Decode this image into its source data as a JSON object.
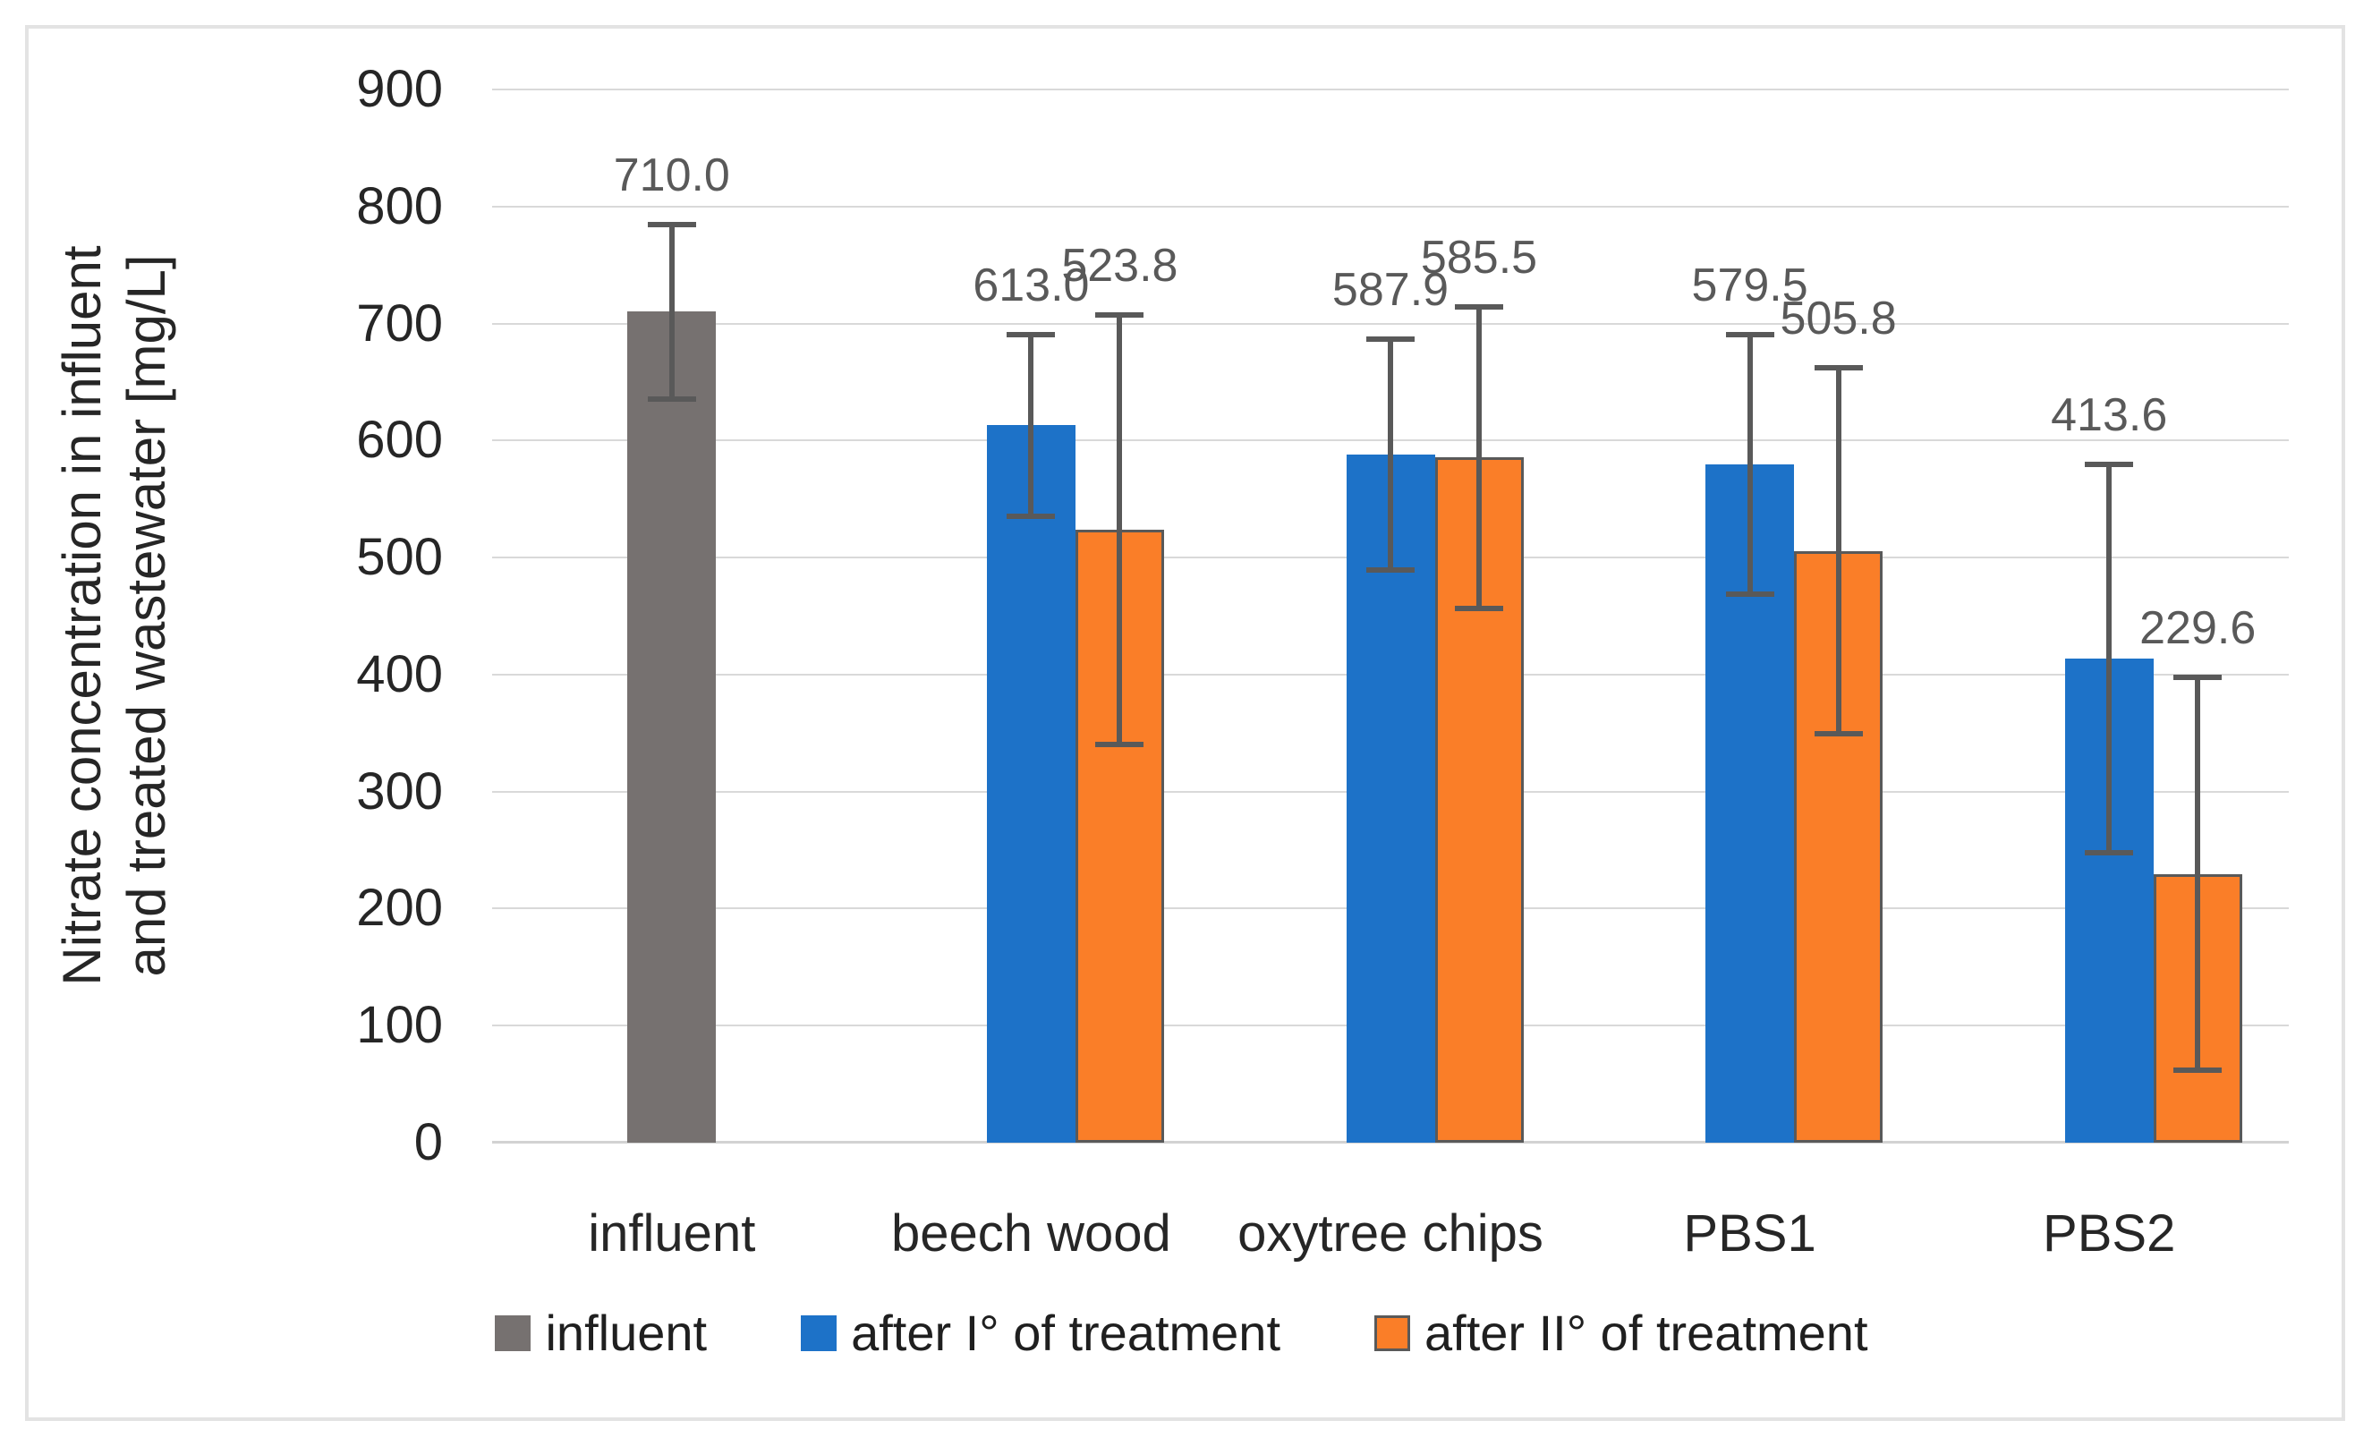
{
  "figure": {
    "border_color": "#e3e3e3",
    "background_color": "#ffffff"
  },
  "chart_data": {
    "type": "bar",
    "title": "",
    "ylabel_line1": "Nitrate concentration in influent",
    "ylabel_line2": "and treated wastewater [mg/L]",
    "ylabel": "Nitrate concentration in influent and treated wastewater [mg/L]",
    "xlabel": "",
    "ylim": [
      0,
      900
    ],
    "yticks": [
      0,
      100,
      200,
      300,
      400,
      500,
      600,
      700,
      800,
      900
    ],
    "grid": true,
    "legend_position": "bottom",
    "gridline_color": "#d9d9d9",
    "error_bar_color": "#595959",
    "data_label_color": "#595959",
    "axis_text_color": "#262626",
    "categories": [
      "influent",
      "beech wood",
      "oxytree chips",
      "PBS1",
      "PBS2"
    ],
    "series": [
      {
        "name": "influent",
        "color": "#767170",
        "border_color": null,
        "points": [
          {
            "category": "influent",
            "value": 710.0,
            "label": "710.0",
            "error": 77
          }
        ]
      },
      {
        "name": "after I° of treatment",
        "color": "#1d72c8",
        "border_color": null,
        "points": [
          {
            "category": "beech wood",
            "value": 613.0,
            "label": "613.0",
            "error": 80
          },
          {
            "category": "oxytree chips",
            "value": 587.9,
            "label": "587.9",
            "error": 101
          },
          {
            "category": "PBS1",
            "value": 579.5,
            "label": "579.5",
            "error": 113
          },
          {
            "category": "PBS2",
            "value": 413.6,
            "label": "413.6",
            "error": 168
          }
        ]
      },
      {
        "name": "after II° of treatment",
        "color": "#fa7e28",
        "border_color": "#595959",
        "points": [
          {
            "category": "beech wood",
            "value": 523.8,
            "label": "523.8",
            "error": 186
          },
          {
            "category": "oxytree chips",
            "value": 585.5,
            "label": "585.5",
            "error": 131
          },
          {
            "category": "PBS1",
            "value": 505.8,
            "label": "505.8",
            "error": 159
          },
          {
            "category": "PBS2",
            "value": 229.6,
            "label": "229.6",
            "error": 170
          }
        ]
      }
    ]
  }
}
